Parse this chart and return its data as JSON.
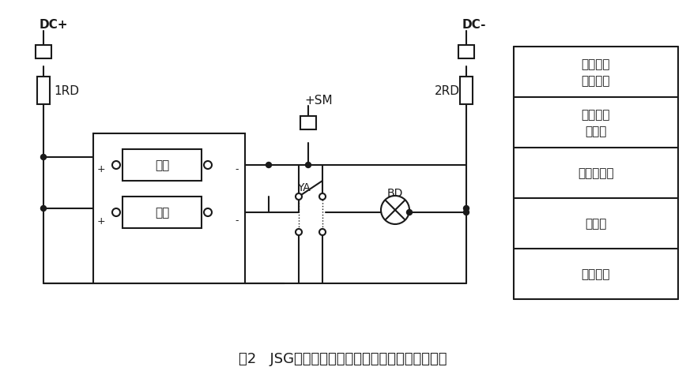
{
  "title": "图2   JSG系列静态闪光继电器应用外部接线参考图",
  "bg_color": "#ffffff",
  "line_color": "#1a1a1a",
  "title_fontsize": 13,
  "label_fontsize": 11,
  "small_fontsize": 10,
  "legend_labels": [
    "直流母线",
    "熔断器",
    "闪光小母线",
    "静态闪光\n断电器",
    "试验按钮\n及信号灯"
  ],
  "DC_plus": "DC+",
  "DC_minus": "DC-",
  "label_1RD": "1RD",
  "label_2RD": "2RD",
  "label_SM": "+SM",
  "label_YA": "YA",
  "label_BD": "BD",
  "label_qidong": "启动",
  "label_dianyuan": "电源"
}
